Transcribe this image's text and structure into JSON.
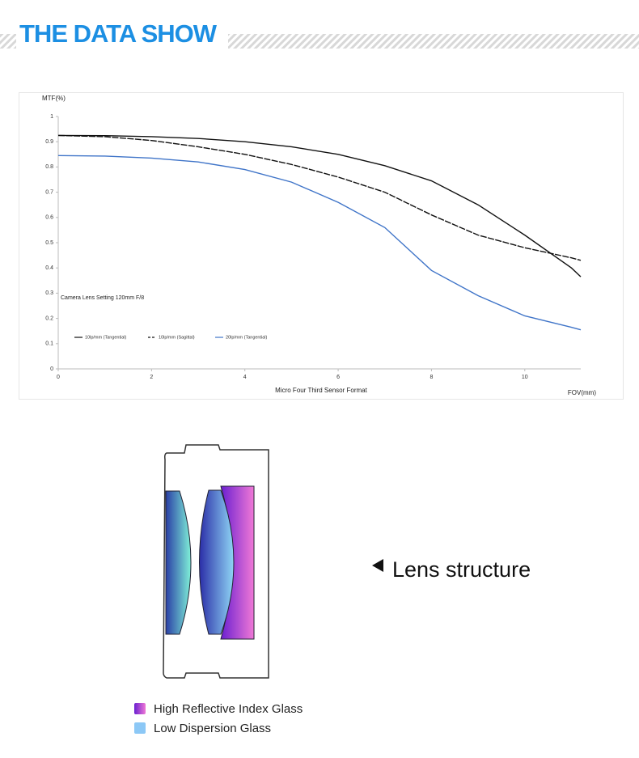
{
  "header": {
    "title": "THE DATA SHOW"
  },
  "chart_data": {
    "type": "line",
    "y_label": "MTF(%)",
    "x_label": "Micro Four Third Sensor Format",
    "x_unit_label": "FOV(mm)",
    "annotation": "Camera Lens Setting 120mm F/8",
    "x": [
      0,
      1,
      2,
      3,
      4,
      5,
      6,
      7,
      8,
      9,
      10,
      11,
      11.2
    ],
    "series": [
      {
        "name": "10lp/mm (Tangential)",
        "color": "#111111",
        "dash": false,
        "values": [
          0.925,
          0.924,
          0.92,
          0.913,
          0.9,
          0.88,
          0.85,
          0.805,
          0.745,
          0.65,
          0.53,
          0.4,
          0.365
        ]
      },
      {
        "name": "10lp/mm (Sagittal)",
        "color": "#111111",
        "dash": true,
        "values": [
          0.925,
          0.92,
          0.905,
          0.88,
          0.85,
          0.81,
          0.76,
          0.7,
          0.61,
          0.53,
          0.48,
          0.44,
          0.43
        ]
      },
      {
        "name": "20lp/mm (Tangential)",
        "color": "#3f74c8",
        "dash": false,
        "values": [
          0.845,
          0.843,
          0.835,
          0.82,
          0.79,
          0.74,
          0.66,
          0.56,
          0.39,
          0.29,
          0.21,
          0.165,
          0.155
        ]
      }
    ],
    "xlim": [
      0,
      11.2
    ],
    "xticks": [
      0,
      2,
      4,
      6,
      8,
      10
    ],
    "ylim": [
      0,
      1
    ],
    "yticks": [
      0,
      0.1,
      0.2,
      0.3,
      0.4,
      0.5,
      0.6,
      0.7,
      0.8,
      0.9,
      1
    ],
    "grid": false
  },
  "lens": {
    "caption": "Lens structure",
    "legend": [
      "High Reflective Index Glass",
      "Low Dispersion Glass"
    ]
  }
}
